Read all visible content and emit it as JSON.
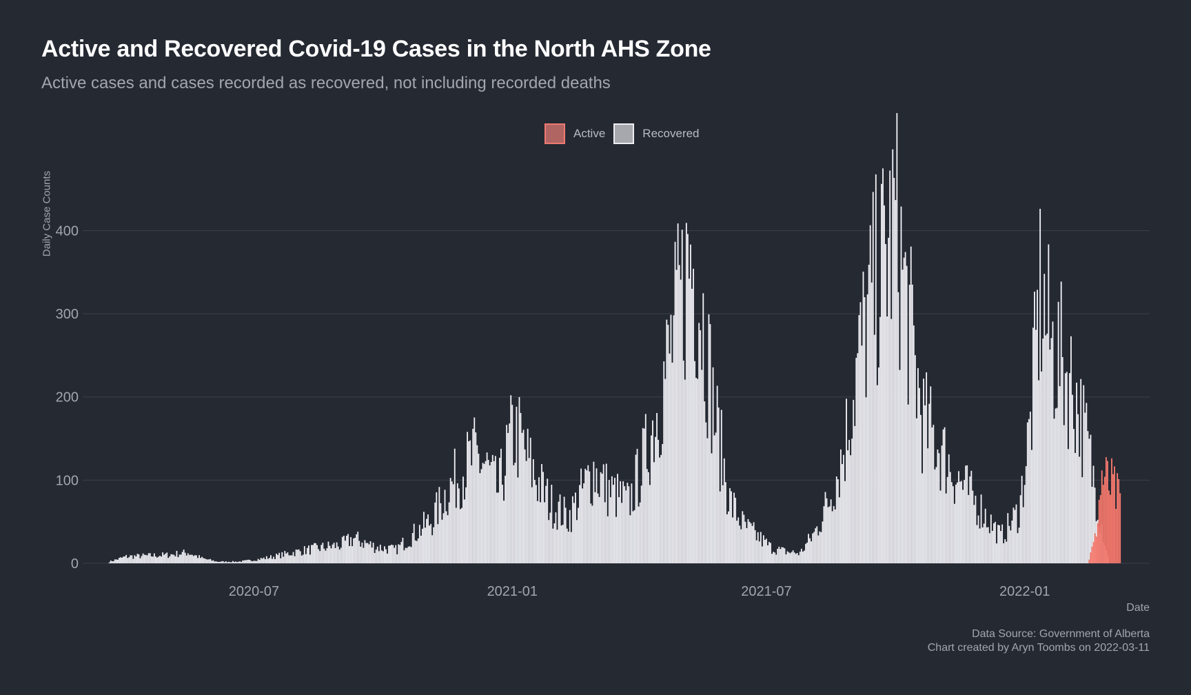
{
  "header": {
    "title": "Active and Recovered Covid-19 Cases in the North AHS Zone",
    "subtitle": "Active cases and cases recorded as recovered, not including recorded deaths"
  },
  "legend": {
    "items": [
      {
        "label": "Active",
        "fill": "#b06563",
        "stroke": "#f07a72"
      },
      {
        "label": "Recovered",
        "fill": "#a7a8ae",
        "stroke": "#eeeef2"
      }
    ]
  },
  "footer": {
    "source": "Data Source: Government of Alberta",
    "credit": "Chart created by Aryn Toombs on 2022-03-11"
  },
  "colors": {
    "background": "#252932",
    "grid": "#3c404a",
    "recovered": "#f2f2f7",
    "active": "#fa7a6e"
  },
  "chart_data": {
    "type": "bar",
    "title": "Active and Recovered Covid-19 Cases in the North AHS Zone",
    "subtitle": "Active cases and cases recorded as recovered, not including recorded deaths",
    "xlabel": "Date",
    "ylabel": "Daily Case Counts",
    "x_ticks": [
      "2020-07",
      "2021-01",
      "2021-07",
      "2022-01"
    ],
    "y_ticks": [
      0,
      100,
      200,
      300,
      400
    ],
    "xlim": [
      "2020-03-01",
      "2022-03-31"
    ],
    "ylim": [
      0,
      470
    ],
    "grid": "horizontal",
    "legend_position": "top-center",
    "series": [
      {
        "name": "Recovered",
        "points": [
          [
            "2020-03-20",
            2
          ],
          [
            "2020-04-01",
            8
          ],
          [
            "2020-04-15",
            9
          ],
          [
            "2020-05-01",
            10
          ],
          [
            "2020-05-15",
            13
          ],
          [
            "2020-05-25",
            6
          ],
          [
            "2020-06-05",
            2
          ],
          [
            "2020-06-20",
            2
          ],
          [
            "2020-07-01",
            4
          ],
          [
            "2020-07-15",
            8
          ],
          [
            "2020-08-01",
            14
          ],
          [
            "2020-08-15",
            18
          ],
          [
            "2020-09-01",
            22
          ],
          [
            "2020-09-10",
            30
          ],
          [
            "2020-09-25",
            20
          ],
          [
            "2020-10-10",
            16
          ],
          [
            "2020-10-25",
            38
          ],
          [
            "2020-11-05",
            52
          ],
          [
            "2020-11-15",
            85
          ],
          [
            "2020-11-25",
            108
          ],
          [
            "2020-12-05",
            128
          ],
          [
            "2020-12-12",
            120
          ],
          [
            "2020-12-22",
            86
          ],
          [
            "2021-01-01",
            155
          ],
          [
            "2021-01-06",
            150
          ],
          [
            "2021-01-15",
            112
          ],
          [
            "2021-01-28",
            72
          ],
          [
            "2021-02-10",
            55
          ],
          [
            "2021-02-28",
            112
          ],
          [
            "2021-03-10",
            88
          ],
          [
            "2021-03-25",
            72
          ],
          [
            "2021-04-05",
            125
          ],
          [
            "2021-04-15",
            190
          ],
          [
            "2021-04-25",
            265
          ],
          [
            "2021-05-01",
            315
          ],
          [
            "2021-05-08",
            370
          ],
          [
            "2021-05-15",
            320
          ],
          [
            "2021-05-25",
            180
          ],
          [
            "2021-06-05",
            75
          ],
          [
            "2021-06-15",
            45
          ],
          [
            "2021-06-25",
            32
          ],
          [
            "2021-07-05",
            18
          ],
          [
            "2021-07-15",
            14
          ],
          [
            "2021-07-25",
            12
          ],
          [
            "2021-08-05",
            38
          ],
          [
            "2021-08-15",
            78
          ],
          [
            "2021-08-25",
            135
          ],
          [
            "2021-09-05",
            248
          ],
          [
            "2021-09-15",
            325
          ],
          [
            "2021-09-25",
            375
          ],
          [
            "2021-10-01",
            410
          ],
          [
            "2021-10-10",
            300
          ],
          [
            "2021-10-20",
            175
          ],
          [
            "2021-11-01",
            140
          ],
          [
            "2021-11-15",
            100
          ],
          [
            "2021-12-01",
            65
          ],
          [
            "2021-12-15",
            32
          ],
          [
            "2021-12-28",
            62
          ],
          [
            "2022-01-05",
            165
          ],
          [
            "2022-01-12",
            325
          ],
          [
            "2022-01-20",
            260
          ],
          [
            "2022-01-28",
            240
          ],
          [
            "2022-02-05",
            210
          ],
          [
            "2022-02-15",
            140
          ],
          [
            "2022-02-22",
            75
          ],
          [
            "2022-03-01",
            8
          ]
        ]
      },
      {
        "name": "Active",
        "points": [
          [
            "2022-02-15",
            0
          ],
          [
            "2022-02-20",
            28
          ],
          [
            "2022-02-25",
            104
          ],
          [
            "2022-03-01",
            96
          ],
          [
            "2022-03-05",
            90
          ],
          [
            "2022-03-10",
            72
          ]
        ]
      }
    ]
  }
}
